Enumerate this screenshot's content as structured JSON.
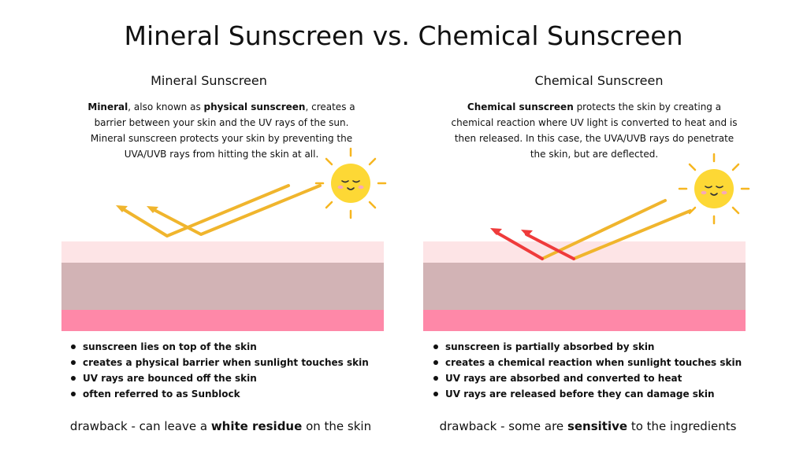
{
  "title": "Mineral Sunscreen vs. Chemical Sunscreen",
  "colors": {
    "skin_top": "#fde4e6",
    "skin_middle": "#d2b3b5",
    "skin_bottom": "#fe88a8",
    "ray_yellow": "#f0b52d",
    "ray_red": "#ef3b3b",
    "sun_fill": "#fdd835",
    "sun_rays": "#f6b620",
    "cheeks": "#f7a8b8"
  },
  "mineral": {
    "heading": "Mineral Sunscreen",
    "desc_bold_1": "Mineral",
    "desc_text_1": ", also known as ",
    "desc_bold_2": "physical sunscreen",
    "desc_text_2": ", creates a barrier between your skin and the UV rays of the sun. Mineral sunscreen protects your skin by preventing the UVA/UVB rays from hitting the skin at all.",
    "bullets": [
      "sunscreen lies on top of the skin",
      "creates a physical barrier when sunlight touches skin",
      "UV rays are bounced off the skin",
      "often referred to as Sunblock"
    ],
    "drawback_pre": "drawback - can leave a ",
    "drawback_bold": "white residue",
    "drawback_post": " on the skin",
    "sun_icon": "smiling-sun-icon"
  },
  "chemical": {
    "heading": "Chemical Sunscreen",
    "desc_bold_1": "Chemical sunscreen",
    "desc_text_1": " protects the skin by creating a chemical reaction where UV light is converted to heat and is then released. In this case, the UVA/UVB rays do penetrate the skin, but are deflected.",
    "bullets": [
      "sunscreen is partially absorbed by skin",
      "creates a chemical reaction when sunlight touches skin",
      "UV rays are absorbed and converted to heat",
      "UV rays are released before they can damage skin"
    ],
    "drawback_pre": "drawback - some are ",
    "drawback_bold": "sensitive",
    "drawback_post": " to the ingredients",
    "sun_icon": "smiling-sun-icon"
  }
}
